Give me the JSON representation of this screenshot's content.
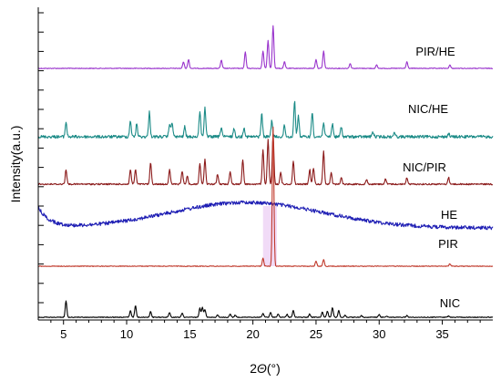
{
  "chart_data": {
    "type": "line",
    "title": "",
    "xlabel": "2Θ(°)",
    "xlabel_parts": {
      "prefix": "2",
      "symbol": "Θ",
      "unit": "(°)"
    },
    "ylabel": "Intensity(a.u.)",
    "xlim": [
      3,
      39
    ],
    "x_ticks": [
      5,
      10,
      15,
      20,
      25,
      30,
      35
    ],
    "grid": false,
    "legend": "none",
    "series": [
      {
        "name": "PIR/HE",
        "color": "#9933cc",
        "baseline": 0.905,
        "peaks": [
          {
            "x": 14.5,
            "h": 0.4
          },
          {
            "x": 14.9,
            "h": 0.55
          },
          {
            "x": 17.5,
            "h": 0.5
          },
          {
            "x": 19.4,
            "h": 1.0
          },
          {
            "x": 20.8,
            "h": 1.05
          },
          {
            "x": 21.2,
            "h": 1.7
          },
          {
            "x": 21.6,
            "h": 2.6
          },
          {
            "x": 22.5,
            "h": 0.4
          },
          {
            "x": 25.0,
            "h": 0.55
          },
          {
            "x": 25.6,
            "h": 1.05
          },
          {
            "x": 27.7,
            "h": 0.3
          },
          {
            "x": 29.8,
            "h": 0.2
          },
          {
            "x": 32.2,
            "h": 0.4
          },
          {
            "x": 35.6,
            "h": 0.2
          }
        ]
      },
      {
        "name": "NIC/HE",
        "color": "#1a8a86",
        "baseline": 0.695,
        "peaks": [
          {
            "x": 5.2,
            "h": 0.9
          },
          {
            "x": 10.3,
            "h": 1.0
          },
          {
            "x": 10.8,
            "h": 0.8
          },
          {
            "x": 11.8,
            "h": 1.5
          },
          {
            "x": 13.4,
            "h": 0.8
          },
          {
            "x": 13.6,
            "h": 0.9
          },
          {
            "x": 14.6,
            "h": 0.6
          },
          {
            "x": 15.8,
            "h": 1.6
          },
          {
            "x": 16.2,
            "h": 1.8
          },
          {
            "x": 17.5,
            "h": 0.6
          },
          {
            "x": 18.5,
            "h": 0.5
          },
          {
            "x": 19.3,
            "h": 0.6
          },
          {
            "x": 20.7,
            "h": 1.4
          },
          {
            "x": 21.5,
            "h": 1.0
          },
          {
            "x": 22.5,
            "h": 0.7
          },
          {
            "x": 23.3,
            "h": 2.2
          },
          {
            "x": 23.6,
            "h": 1.3
          },
          {
            "x": 24.7,
            "h": 1.5
          },
          {
            "x": 25.6,
            "h": 0.9
          },
          {
            "x": 26.3,
            "h": 0.8
          },
          {
            "x": 27.0,
            "h": 0.6
          },
          {
            "x": 29.5,
            "h": 0.3
          },
          {
            "x": 31.2,
            "h": 0.3
          },
          {
            "x": 35.5,
            "h": 0.2
          }
        ]
      },
      {
        "name": "NIC/PIR",
        "color": "#8b1a1a",
        "baseline": 0.505,
        "peaks": [
          {
            "x": 5.2,
            "h": 0.9
          },
          {
            "x": 10.3,
            "h": 0.9
          },
          {
            "x": 10.7,
            "h": 0.9
          },
          {
            "x": 11.9,
            "h": 1.3
          },
          {
            "x": 13.4,
            "h": 0.9
          },
          {
            "x": 14.4,
            "h": 0.8
          },
          {
            "x": 14.8,
            "h": 0.5
          },
          {
            "x": 15.8,
            "h": 1.3
          },
          {
            "x": 16.2,
            "h": 1.5
          },
          {
            "x": 17.2,
            "h": 0.6
          },
          {
            "x": 18.2,
            "h": 0.8
          },
          {
            "x": 19.2,
            "h": 1.5
          },
          {
            "x": 20.8,
            "h": 2.1
          },
          {
            "x": 21.2,
            "h": 2.7
          },
          {
            "x": 21.6,
            "h": 3.1
          },
          {
            "x": 22.2,
            "h": 0.7
          },
          {
            "x": 23.2,
            "h": 1.4
          },
          {
            "x": 24.5,
            "h": 0.9
          },
          {
            "x": 24.8,
            "h": 1.0
          },
          {
            "x": 25.6,
            "h": 2.0
          },
          {
            "x": 26.2,
            "h": 0.7
          },
          {
            "x": 27.0,
            "h": 0.4
          },
          {
            "x": 29.0,
            "h": 0.3
          },
          {
            "x": 30.5,
            "h": 0.3
          },
          {
            "x": 32.2,
            "h": 0.4
          },
          {
            "x": 35.5,
            "h": 0.4
          }
        ]
      },
      {
        "name": "HE",
        "color": "#1f1fb4",
        "baseline": 0.305,
        "type": "amorphous"
      },
      {
        "name": "PIR",
        "color": "#c0392b",
        "baseline": 0.12,
        "peaks": [
          {
            "x": 20.8,
            "h": 0.5
          },
          {
            "x": 21.6,
            "h": 8.5
          },
          {
            "x": 25.0,
            "h": 0.3
          },
          {
            "x": 25.6,
            "h": 0.4
          },
          {
            "x": 35.6,
            "h": 0.15
          }
        ]
      },
      {
        "name": "NIC",
        "color": "#000000",
        "baseline": 0.0,
        "peaks": [
          {
            "x": 5.2,
            "h": 1.0
          },
          {
            "x": 10.3,
            "h": 0.4
          },
          {
            "x": 10.7,
            "h": 0.72
          },
          {
            "x": 11.9,
            "h": 0.35
          },
          {
            "x": 13.4,
            "h": 0.3
          },
          {
            "x": 14.4,
            "h": 0.25
          },
          {
            "x": 15.8,
            "h": 0.55
          },
          {
            "x": 16.0,
            "h": 0.62
          },
          {
            "x": 16.2,
            "h": 0.48
          },
          {
            "x": 17.2,
            "h": 0.15
          },
          {
            "x": 18.2,
            "h": 0.2
          },
          {
            "x": 18.6,
            "h": 0.13
          },
          {
            "x": 20.8,
            "h": 0.25
          },
          {
            "x": 21.4,
            "h": 0.3
          },
          {
            "x": 22.0,
            "h": 0.2
          },
          {
            "x": 22.7,
            "h": 0.18
          },
          {
            "x": 23.2,
            "h": 0.42
          },
          {
            "x": 24.5,
            "h": 0.2
          },
          {
            "x": 25.5,
            "h": 0.32
          },
          {
            "x": 25.9,
            "h": 0.38
          },
          {
            "x": 26.3,
            "h": 0.58
          },
          {
            "x": 26.8,
            "h": 0.4
          },
          {
            "x": 27.3,
            "h": 0.12
          },
          {
            "x": 28.6,
            "h": 0.1
          },
          {
            "x": 30.0,
            "h": 0.16
          },
          {
            "x": 30.6,
            "h": 0.08
          },
          {
            "x": 32.2,
            "h": 0.1
          },
          {
            "x": 35.5,
            "h": 0.08
          }
        ]
      }
    ],
    "annotations": [
      {
        "type": "highlight-band",
        "x_range": [
          20.8,
          21.9
        ],
        "color": "#e0b0ee"
      }
    ]
  }
}
